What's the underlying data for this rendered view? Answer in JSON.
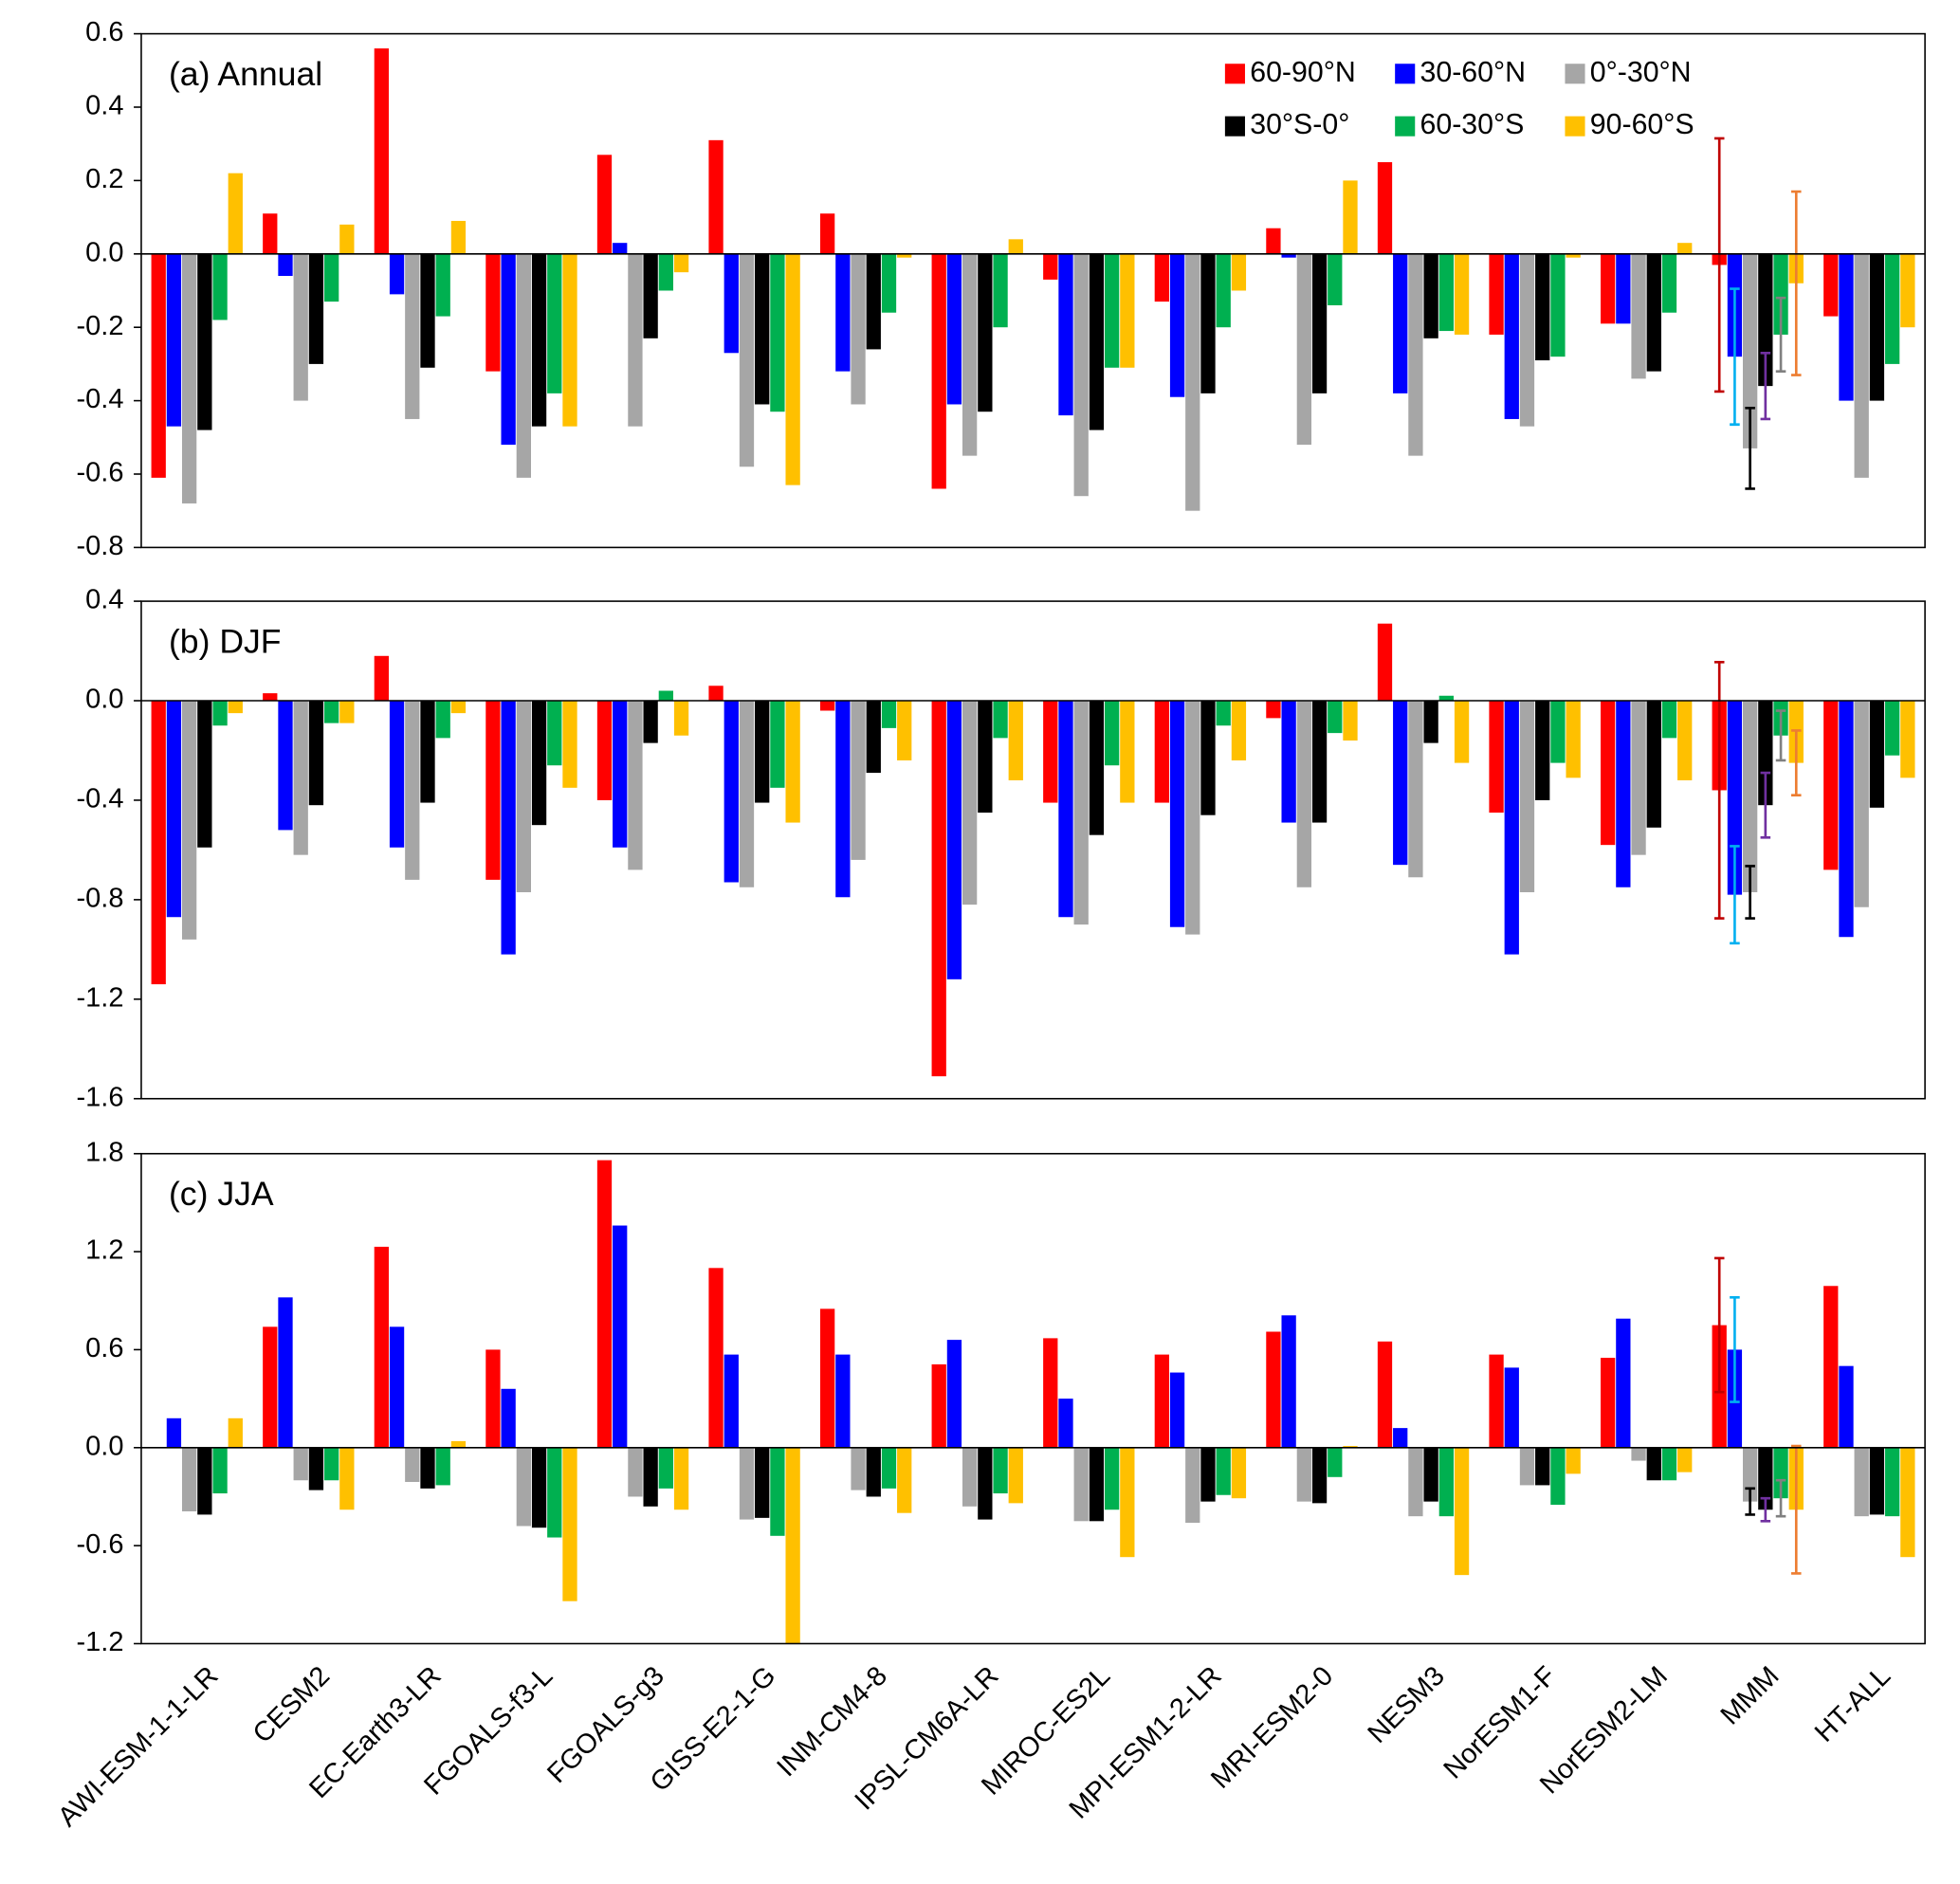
{
  "chart_data": [
    {
      "type": "bar",
      "title": "(a) Annual",
      "ylim": [
        -0.8,
        0.6
      ],
      "yticks": [
        -0.8,
        -0.6,
        -0.4,
        -0.2,
        {
          "value": 0,
          "label": "0.0"
        },
        0.2,
        0.4,
        0.6
      ],
      "legend": "top-right",
      "series": [
        {
          "name": "60-90°N",
          "color": "#ff0000",
          "error_color": "#c00000",
          "values": [
            -0.61,
            0.11,
            0.56,
            -0.32,
            0.27,
            0.31,
            0.11,
            -0.64,
            -0.07,
            -0.13,
            0.07,
            0.25,
            -0.22,
            -0.19,
            -0.03,
            -0.17
          ],
          "errors": [
            null,
            null,
            null,
            null,
            null,
            null,
            null,
            null,
            null,
            null,
            null,
            null,
            null,
            null,
            0.345,
            null
          ]
        },
        {
          "name": "30-60°N",
          "color": "#0000ff",
          "error_color": "#00b0f0",
          "values": [
            -0.47,
            -0.06,
            -0.11,
            -0.52,
            0.03,
            -0.27,
            -0.32,
            -0.41,
            -0.44,
            -0.39,
            -0.01,
            -0.38,
            -0.45,
            -0.19,
            -0.28,
            -0.4
          ],
          "errors": [
            null,
            null,
            null,
            null,
            null,
            null,
            null,
            null,
            null,
            null,
            null,
            null,
            null,
            null,
            0.185,
            null
          ]
        },
        {
          "name": "0°-30°N",
          "color": "#a6a6a6",
          "error_color": "#000000",
          "values": [
            -0.68,
            -0.4,
            -0.45,
            -0.61,
            -0.47,
            -0.58,
            -0.41,
            -0.55,
            -0.66,
            -0.7,
            -0.52,
            -0.55,
            -0.47,
            -0.34,
            -0.53,
            -0.61
          ],
          "errors": [
            null,
            null,
            null,
            null,
            null,
            null,
            null,
            null,
            null,
            null,
            null,
            null,
            null,
            null,
            0.11,
            null
          ]
        },
        {
          "name": "30°S-0°",
          "color": "#000000",
          "error_color": "#7030a0",
          "values": [
            -0.48,
            -0.3,
            -0.31,
            -0.47,
            -0.23,
            -0.41,
            -0.26,
            -0.43,
            -0.48,
            -0.38,
            -0.38,
            -0.23,
            -0.29,
            -0.32,
            -0.36,
            -0.4
          ],
          "errors": [
            null,
            null,
            null,
            null,
            null,
            null,
            null,
            null,
            null,
            null,
            null,
            null,
            null,
            null,
            0.09,
            null
          ]
        },
        {
          "name": "60-30°S",
          "color": "#00b050",
          "error_color": "#808080",
          "values": [
            -0.18,
            -0.13,
            -0.17,
            -0.38,
            -0.1,
            -0.43,
            -0.16,
            -0.2,
            -0.31,
            -0.2,
            -0.14,
            -0.21,
            -0.28,
            -0.16,
            -0.22,
            -0.3
          ],
          "errors": [
            null,
            null,
            null,
            null,
            null,
            null,
            null,
            null,
            null,
            null,
            null,
            null,
            null,
            null,
            0.1,
            null
          ]
        },
        {
          "name": "90-60°S",
          "color": "#ffc000",
          "error_color": "#ed7d31",
          "values": [
            0.22,
            0.08,
            0.09,
            -0.47,
            -0.05,
            -0.63,
            -0.01,
            0.04,
            -0.31,
            -0.1,
            0.2,
            -0.22,
            -0.01,
            0.03,
            -0.08,
            -0.2
          ],
          "errors": [
            null,
            null,
            null,
            null,
            null,
            null,
            null,
            null,
            null,
            null,
            null,
            null,
            null,
            null,
            0.25,
            null
          ]
        }
      ]
    },
    {
      "type": "bar",
      "title": "(b) DJF",
      "ylim": [
        -1.6,
        0.4
      ],
      "yticks": [
        -1.6,
        -1.2,
        -0.8,
        -0.4,
        {
          "value": 0,
          "label": "0.0"
        },
        0.4
      ],
      "series": [
        {
          "color": "#ff0000",
          "error_color": "#c00000",
          "values": [
            -1.14,
            0.03,
            0.18,
            -0.72,
            -0.4,
            0.06,
            -0.04,
            -1.51,
            -0.41,
            -0.41,
            -0.07,
            0.31,
            -0.45,
            -0.58,
            -0.36,
            -0.68
          ],
          "errors": [
            null,
            null,
            null,
            null,
            null,
            null,
            null,
            null,
            null,
            null,
            null,
            null,
            null,
            null,
            0.515,
            null
          ]
        },
        {
          "color": "#0000ff",
          "error_color": "#00b0f0",
          "values": [
            -0.87,
            -0.52,
            -0.59,
            -1.02,
            -0.59,
            -0.73,
            -0.79,
            -1.12,
            -0.87,
            -0.91,
            -0.49,
            -0.66,
            -1.02,
            -0.75,
            -0.78,
            -0.95
          ],
          "errors": [
            null,
            null,
            null,
            null,
            null,
            null,
            null,
            null,
            null,
            null,
            null,
            null,
            null,
            null,
            0.195,
            null
          ]
        },
        {
          "color": "#a6a6a6",
          "error_color": "#000000",
          "values": [
            -0.96,
            -0.62,
            -0.72,
            -0.77,
            -0.68,
            -0.75,
            -0.64,
            -0.82,
            -0.9,
            -0.94,
            -0.75,
            -0.71,
            -0.77,
            -0.62,
            -0.77,
            -0.83
          ],
          "errors": [
            null,
            null,
            null,
            null,
            null,
            null,
            null,
            null,
            null,
            null,
            null,
            null,
            null,
            null,
            0.105,
            null
          ]
        },
        {
          "color": "#000000",
          "error_color": "#7030a0",
          "values": [
            -0.59,
            -0.42,
            -0.41,
            -0.5,
            -0.17,
            -0.41,
            -0.29,
            -0.45,
            -0.54,
            -0.46,
            -0.49,
            -0.17,
            -0.4,
            -0.51,
            -0.42,
            -0.43
          ],
          "errors": [
            null,
            null,
            null,
            null,
            null,
            null,
            null,
            null,
            null,
            null,
            null,
            null,
            null,
            null,
            0.13,
            null
          ]
        },
        {
          "color": "#00b050",
          "error_color": "#808080",
          "values": [
            -0.1,
            -0.09,
            -0.15,
            -0.26,
            0.04,
            -0.35,
            -0.11,
            -0.15,
            -0.26,
            -0.1,
            -0.13,
            0.02,
            -0.25,
            -0.15,
            -0.14,
            -0.22
          ],
          "errors": [
            null,
            null,
            null,
            null,
            null,
            null,
            null,
            null,
            null,
            null,
            null,
            null,
            null,
            null,
            0.1,
            null
          ]
        },
        {
          "color": "#ffc000",
          "error_color": "#ed7d31",
          "values": [
            -0.05,
            -0.09,
            -0.05,
            -0.35,
            -0.14,
            -0.49,
            -0.24,
            -0.32,
            -0.41,
            -0.24,
            -0.16,
            -0.25,
            -0.31,
            -0.32,
            -0.25,
            -0.31
          ],
          "errors": [
            null,
            null,
            null,
            null,
            null,
            null,
            null,
            null,
            null,
            null,
            null,
            null,
            null,
            null,
            0.13,
            null
          ]
        }
      ]
    },
    {
      "type": "bar",
      "title": "(c) JJA",
      "ylim": [
        -1.2,
        1.8
      ],
      "yticks": [
        -1.2,
        -0.6,
        {
          "value": 0,
          "label": "0.0"
        },
        0.6,
        1.2,
        1.8
      ],
      "categories": [
        "AWI-ESM-1-1-LR",
        "CESM2",
        "EC-Earth3-LR",
        "FGOALS-f3-L",
        "FGOALS-g3",
        "GISS-E2-1-G",
        "INM-CM4-8",
        "IPSL-CM6A-LR",
        "MIROC-ES2L",
        "MPI-ESM1-2-LR",
        "MRI-ESM2-0",
        "NESM3",
        "NorESM1-F",
        "NorESM2-LM",
        "MMM",
        "HT-ALL"
      ],
      "series": [
        {
          "color": "#ff0000",
          "error_color": "#c00000",
          "values": [
            0.0,
            0.74,
            1.23,
            0.6,
            1.76,
            1.1,
            0.85,
            0.51,
            0.67,
            0.57,
            0.71,
            0.65,
            0.57,
            0.55,
            0.75,
            0.99
          ],
          "errors": [
            null,
            null,
            null,
            null,
            null,
            null,
            null,
            null,
            null,
            null,
            null,
            null,
            null,
            null,
            0.41,
            null
          ]
        },
        {
          "color": "#0000ff",
          "error_color": "#00b0f0",
          "values": [
            0.18,
            0.92,
            0.74,
            0.36,
            1.36,
            0.57,
            0.57,
            0.66,
            0.3,
            0.46,
            0.81,
            0.12,
            0.49,
            0.79,
            0.6,
            0.5
          ],
          "errors": [
            null,
            null,
            null,
            null,
            null,
            null,
            null,
            null,
            null,
            null,
            null,
            null,
            null,
            null,
            0.32,
            null
          ]
        },
        {
          "color": "#a6a6a6",
          "error_color": "#000000",
          "values": [
            -0.39,
            -0.2,
            -0.21,
            -0.48,
            -0.3,
            -0.44,
            -0.26,
            -0.36,
            -0.45,
            -0.46,
            -0.33,
            -0.42,
            -0.23,
            -0.08,
            -0.33,
            -0.42
          ],
          "errors": [
            null,
            null,
            null,
            null,
            null,
            null,
            null,
            null,
            null,
            null,
            null,
            null,
            null,
            null,
            0.08,
            null
          ]
        },
        {
          "color": "#000000",
          "error_color": "#7030a0",
          "values": [
            -0.41,
            -0.26,
            -0.25,
            -0.49,
            -0.36,
            -0.43,
            -0.3,
            -0.44,
            -0.45,
            -0.33,
            -0.34,
            -0.33,
            -0.23,
            -0.2,
            -0.38,
            -0.41
          ],
          "errors": [
            null,
            null,
            null,
            null,
            null,
            null,
            null,
            null,
            null,
            null,
            null,
            null,
            null,
            null,
            0.07,
            null
          ]
        },
        {
          "color": "#00b050",
          "error_color": "#808080",
          "values": [
            -0.28,
            -0.2,
            -0.23,
            -0.55,
            -0.25,
            -0.54,
            -0.25,
            -0.28,
            -0.38,
            -0.29,
            -0.18,
            -0.42,
            -0.35,
            -0.2,
            -0.31,
            -0.42
          ],
          "errors": [
            null,
            null,
            null,
            null,
            null,
            null,
            null,
            null,
            null,
            null,
            null,
            null,
            null,
            null,
            0.11,
            null
          ]
        },
        {
          "color": "#ffc000",
          "error_color": "#ed7d31",
          "values": [
            0.18,
            -0.38,
            0.04,
            -0.94,
            -0.38,
            -1.2,
            -0.4,
            -0.34,
            -0.67,
            -0.31,
            0.01,
            -0.78,
            -0.16,
            -0.15,
            -0.38,
            -0.67
          ],
          "errors": [
            null,
            null,
            null,
            null,
            null,
            null,
            null,
            null,
            null,
            null,
            null,
            null,
            null,
            null,
            0.39,
            null
          ]
        }
      ]
    }
  ]
}
